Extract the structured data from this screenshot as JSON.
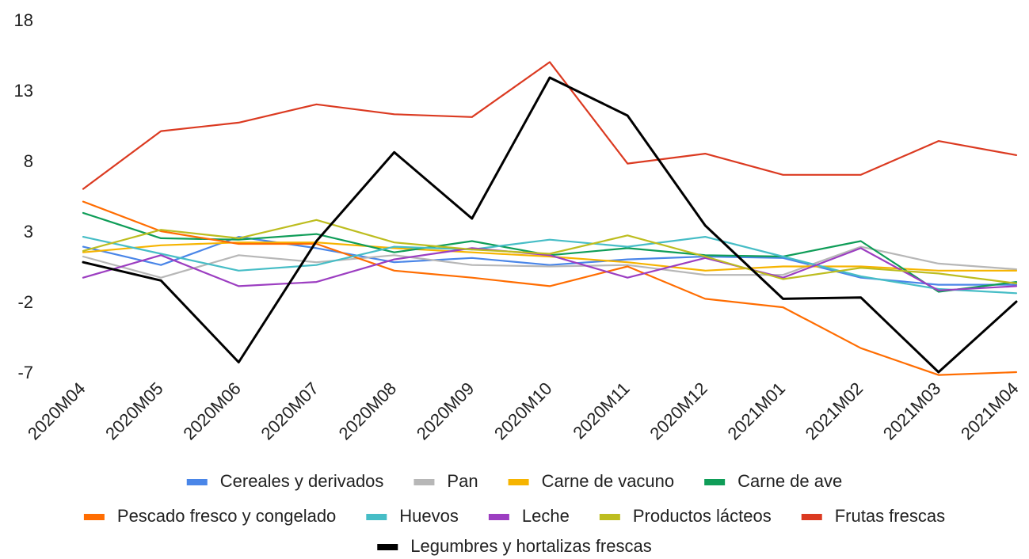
{
  "chart_data": {
    "type": "line",
    "title": "",
    "xlabel": "",
    "ylabel": "",
    "ylim": [
      -7,
      18
    ],
    "yticks": [
      18,
      13,
      8,
      3,
      -2,
      -7
    ],
    "grid": false,
    "legend_position": "bottom",
    "categories": [
      "2020M04",
      "2020M05",
      "2020M06",
      "2020M07",
      "2020M08",
      "2020M09",
      "2020M10",
      "2020M11",
      "2020M12",
      "2021M01",
      "2021M02",
      "2021M03",
      "2021M04"
    ],
    "series": [
      {
        "name": "Cereales y derivados",
        "color": "#4a86e8",
        "values": [
          1.9,
          0.6,
          2.6,
          1.8,
          0.8,
          1.1,
          0.6,
          1.0,
          1.2,
          1.1,
          -0.3,
          -0.8,
          -0.8
        ]
      },
      {
        "name": "Pan",
        "color": "#b7b7b7",
        "values": [
          1.2,
          -0.3,
          1.3,
          0.8,
          1.3,
          0.6,
          0.5,
          0.6,
          -0.1,
          -0.1,
          1.9,
          0.7,
          0.3
        ]
      },
      {
        "name": "Carne de vacuno",
        "color": "#f6b400",
        "values": [
          1.5,
          2.0,
          2.2,
          2.2,
          1.8,
          1.5,
          1.2,
          0.8,
          0.2,
          0.5,
          0.5,
          0.2,
          0.2
        ]
      },
      {
        "name": "Carne de ave",
        "color": "#0f9d58",
        "values": [
          4.3,
          2.5,
          2.4,
          2.8,
          1.5,
          2.3,
          1.3,
          1.8,
          1.3,
          1.2,
          2.3,
          -1.3,
          -0.6
        ]
      },
      {
        "name": "Pescado fresco y congelado",
        "color": "#ff6d01",
        "values": [
          5.1,
          3.0,
          2.1,
          2.1,
          0.2,
          -0.3,
          -0.9,
          0.5,
          -1.8,
          -2.4,
          -5.3,
          -7.2,
          -7.0
        ]
      },
      {
        "name": "Huevos",
        "color": "#46bdc6",
        "values": [
          2.6,
          1.4,
          0.2,
          0.6,
          1.9,
          1.7,
          2.4,
          1.9,
          2.6,
          1.2,
          -0.2,
          -1.1,
          -1.4
        ]
      },
      {
        "name": "Leche",
        "color": "#9c3ec1",
        "values": [
          -0.3,
          1.3,
          -0.9,
          -0.6,
          1.0,
          1.8,
          1.3,
          -0.3,
          1.1,
          -0.3,
          1.8,
          -1.2,
          -0.9
        ]
      },
      {
        "name": "Productos lácteos",
        "color": "#bdbd1f",
        "values": [
          1.6,
          3.1,
          2.5,
          3.8,
          2.2,
          1.7,
          1.4,
          2.7,
          1.2,
          -0.4,
          0.4,
          0.0,
          -0.7
        ]
      },
      {
        "name": "Frutas frescas",
        "color": "#db3a21",
        "values": [
          6.0,
          10.1,
          10.7,
          12.0,
          11.3,
          11.1,
          15.0,
          7.8,
          8.5,
          7.0,
          7.0,
          9.4,
          8.4
        ]
      },
      {
        "name": "Legumbres y hortalizas frescas",
        "color": "#000000",
        "values": [
          0.8,
          -0.5,
          -6.3,
          2.3,
          8.6,
          3.9,
          13.9,
          11.2,
          3.4,
          -1.8,
          -1.7,
          -7.0,
          -2.0
        ]
      }
    ],
    "legend_rows": [
      [
        0,
        1,
        2,
        3
      ],
      [
        4,
        5,
        6,
        7,
        8
      ],
      [
        9
      ]
    ]
  }
}
